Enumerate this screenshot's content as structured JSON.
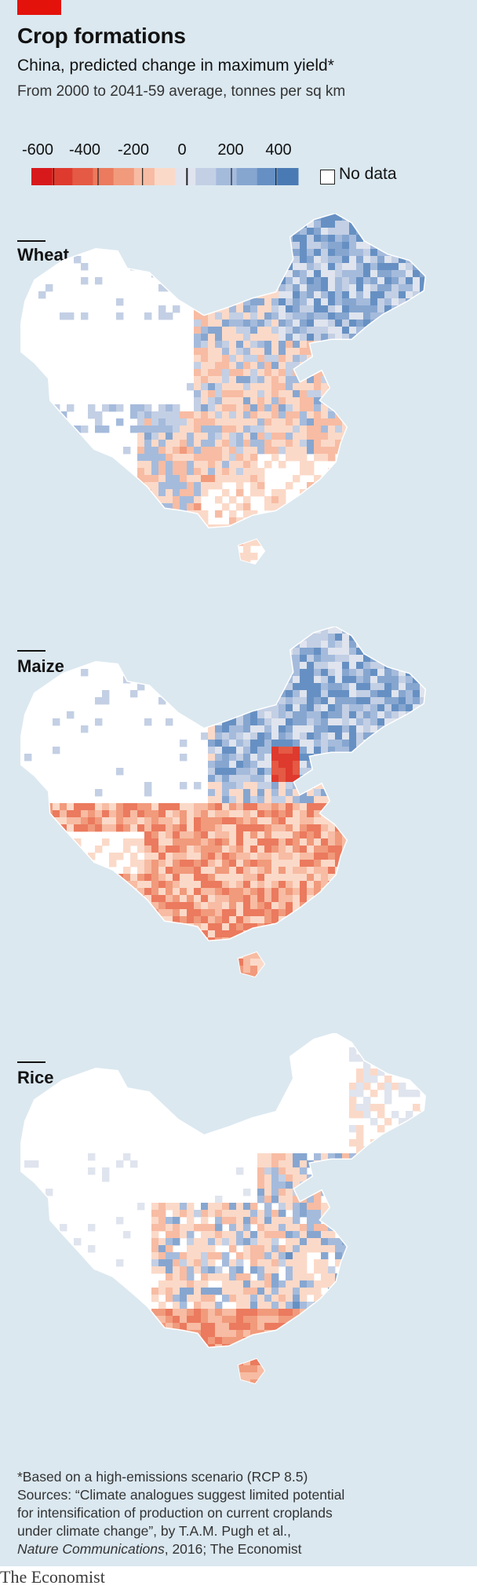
{
  "header": {
    "title": "Crop formations",
    "subtitle": "China, predicted change in maximum yield*",
    "description": "From 2000 to 2041-59 average, tonnes per sq km"
  },
  "legend": {
    "ticks": [
      {
        "label": "-600",
        "value": -600
      },
      {
        "label": "-400",
        "value": -400
      },
      {
        "label": "-200",
        "value": -200
      },
      {
        "label": "0",
        "value": 0
      },
      {
        "label": "200",
        "value": 200
      },
      {
        "label": "400",
        "value": 400
      }
    ],
    "range": [
      -700,
      500
    ],
    "no_data_label": "No data",
    "colors": [
      "#d7191c",
      "#de3a2e",
      "#e45a44",
      "#eb7a5e",
      "#f19a7c",
      "#f7bca3",
      "#fbd9c8",
      "#dfe4ee",
      "#c3cfe4",
      "#a5bbdc",
      "#86a6d0",
      "#6690c3",
      "#4a7ab4"
    ]
  },
  "maps": [
    {
      "name": "Wheat",
      "pattern": "wheat"
    },
    {
      "name": "Maize",
      "pattern": "maize"
    },
    {
      "name": "Rice",
      "pattern": "rice"
    }
  ],
  "footnote": {
    "line1": "*Based on a high-emissions scenario (RCP 8.5)",
    "line2": "Sources: “Climate analogues suggest limited potential",
    "line3": "for intensification of production on current croplands",
    "line4": "under climate change”, by T.A.M. Pugh et al.,",
    "journal": "Nature Communications",
    "tail": ", 2016; The Economist"
  },
  "brand": {
    "logo": "The Economist",
    "accent": "#e3120b",
    "panel": "#dbe8f0"
  }
}
